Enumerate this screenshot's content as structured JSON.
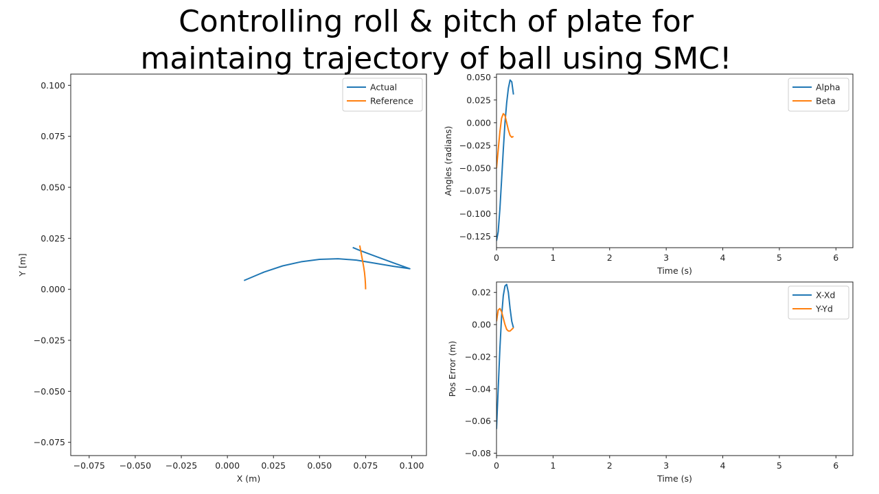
{
  "title_line1": "Controlling roll & pitch of plate for",
  "title_line2": "maintaing trajectory of ball using SMC!",
  "colors": {
    "blue": "#1f77b4",
    "orange": "#ff7f0e"
  },
  "chart_data": [
    {
      "id": "trajectory",
      "type": "line",
      "xlabel": "X (m)",
      "ylabel": "Y [m]",
      "xlim": [
        -0.085,
        0.108
      ],
      "ylim": [
        -0.0815,
        0.1055
      ],
      "xticks": [
        -0.075,
        -0.05,
        -0.025,
        0.0,
        0.025,
        0.05,
        0.075,
        0.1
      ],
      "xtick_labels": [
        "−0.075",
        "−0.050",
        "−0.025",
        "0.000",
        "0.025",
        "0.050",
        "0.075",
        "0.100"
      ],
      "yticks": [
        -0.075,
        -0.05,
        -0.025,
        0.0,
        0.025,
        0.05,
        0.075,
        0.1
      ],
      "ytick_labels": [
        "−0.075",
        "−0.050",
        "−0.025",
        "0.000",
        "0.025",
        "0.050",
        "0.075",
        "0.100"
      ],
      "grid": false,
      "legend": "upper right",
      "series": [
        {
          "name": "Actual",
          "color": "#1f77b4",
          "x": [
            0.009,
            0.02,
            0.03,
            0.04,
            0.05,
            0.06,
            0.07,
            0.08,
            0.09,
            0.099,
            0.09,
            0.08,
            0.072,
            0.068
          ],
          "y": [
            0.0043,
            0.0085,
            0.0115,
            0.0135,
            0.0147,
            0.015,
            0.0143,
            0.0128,
            0.0113,
            0.0101,
            0.013,
            0.0163,
            0.019,
            0.0205
          ]
        },
        {
          "name": "Reference",
          "color": "#ff7f0e",
          "x": [
            0.0718,
            0.0726,
            0.0733,
            0.0739,
            0.0744,
            0.0747,
            0.0749,
            0.075
          ],
          "y": [
            0.0215,
            0.0176,
            0.0142,
            0.0112,
            0.0082,
            0.0054,
            0.0027,
            0.0
          ]
        }
      ]
    },
    {
      "id": "angles",
      "type": "line",
      "xlabel": "Time (s)",
      "ylabel": "Angles (radians)",
      "xlim": [
        0,
        6.3
      ],
      "ylim": [
        -0.1375,
        0.0535
      ],
      "xticks": [
        0,
        1,
        2,
        3,
        4,
        5,
        6
      ],
      "xtick_labels": [
        "0",
        "1",
        "2",
        "3",
        "4",
        "5",
        "6"
      ],
      "yticks": [
        -0.125,
        -0.1,
        -0.075,
        -0.05,
        -0.025,
        0.0,
        0.025,
        0.05
      ],
      "ytick_labels": [
        "−0.125",
        "−0.100",
        "−0.075",
        "−0.050",
        "−0.025",
        "0.000",
        "0.025",
        "0.050"
      ],
      "grid": false,
      "legend": "upper right",
      "series": [
        {
          "name": "Alpha",
          "color": "#1f77b4",
          "x": [
            0.0,
            0.03,
            0.06,
            0.09,
            0.12,
            0.15,
            0.18,
            0.21,
            0.24,
            0.27,
            0.3
          ],
          "y": [
            -0.13,
            -0.12,
            -0.095,
            -0.063,
            -0.03,
            0.0,
            0.022,
            0.038,
            0.047,
            0.045,
            0.031
          ]
        },
        {
          "name": "Beta",
          "color": "#ff7f0e",
          "x": [
            0.0,
            0.03,
            0.06,
            0.09,
            0.12,
            0.15,
            0.18,
            0.21,
            0.24,
            0.27,
            0.3
          ],
          "y": [
            -0.05,
            -0.03,
            -0.01,
            0.005,
            0.01,
            0.008,
            0.0,
            -0.008,
            -0.014,
            -0.016,
            -0.015
          ]
        }
      ]
    },
    {
      "id": "poserror",
      "type": "line",
      "xlabel": "Time (s)",
      "ylabel": "Pos Error (m)",
      "xlim": [
        0,
        6.3
      ],
      "ylim": [
        -0.0815,
        0.0265
      ],
      "xticks": [
        0,
        1,
        2,
        3,
        4,
        5,
        6
      ],
      "xtick_labels": [
        "0",
        "1",
        "2",
        "3",
        "4",
        "5",
        "6"
      ],
      "yticks": [
        -0.08,
        -0.06,
        -0.04,
        -0.02,
        0.0,
        0.02
      ],
      "ytick_labels": [
        "−0.08",
        "−0.06",
        "−0.04",
        "−0.02",
        "0.00",
        "0.02"
      ],
      "grid": false,
      "legend": "upper right",
      "series": [
        {
          "name": "X-Xd",
          "color": "#1f77b4",
          "x": [
            0.0,
            0.03,
            0.06,
            0.09,
            0.12,
            0.15,
            0.18,
            0.21,
            0.24,
            0.27,
            0.3
          ],
          "y": [
            -0.065,
            -0.04,
            -0.015,
            0.005,
            0.018,
            0.024,
            0.025,
            0.02,
            0.01,
            0.002,
            -0.002
          ]
        },
        {
          "name": "Y-Yd",
          "color": "#ff7f0e",
          "x": [
            0.0,
            0.03,
            0.06,
            0.09,
            0.12,
            0.15,
            0.18,
            0.21,
            0.24,
            0.27,
            0.3
          ],
          "y": [
            0.002,
            0.009,
            0.01,
            0.008,
            0.004,
            0.0,
            -0.003,
            -0.004,
            -0.004,
            -0.003,
            -0.002
          ]
        }
      ]
    }
  ]
}
